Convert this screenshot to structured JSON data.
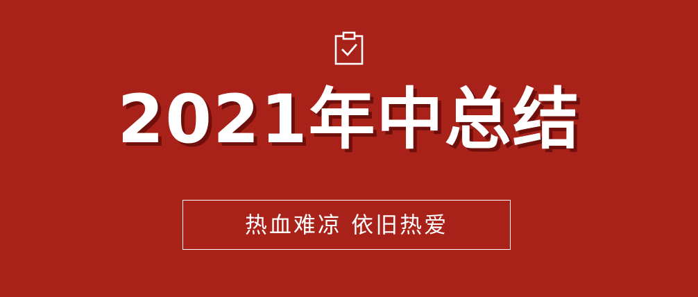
{
  "banner": {
    "background_color": "#a9221a",
    "icon": "clipboard-check-icon",
    "title": "2021年中总结",
    "title_color": "#ffffff",
    "title_shadow_color": "#6e0f0b",
    "slogan": "热血难凉 依旧热爱"
  }
}
